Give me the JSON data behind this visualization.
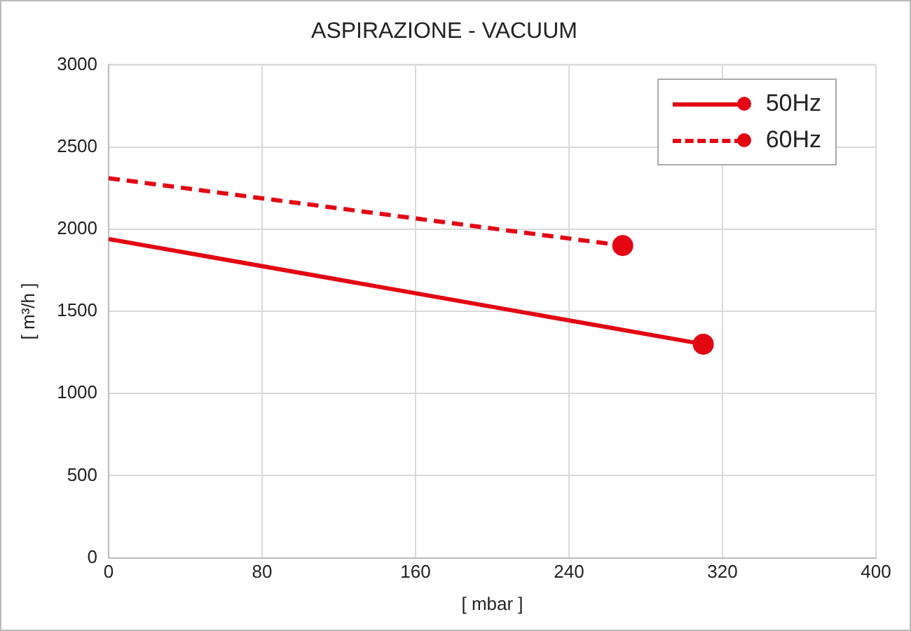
{
  "chart_data": {
    "type": "line",
    "title": "ASPIRAZIONE - VACUUM",
    "xlabel": "[ mbar ]",
    "ylabel": "[ m³/h ]",
    "xlim": [
      0,
      400
    ],
    "xticks": [
      0,
      80,
      160,
      240,
      320,
      400
    ],
    "ylim": [
      0,
      3000
    ],
    "yticks": [
      0,
      500,
      1000,
      1500,
      2000,
      2500,
      3000
    ],
    "grid": true,
    "legend": "top right",
    "marker": "circle",
    "series": [
      {
        "name": "50Hz",
        "color": "#e30613",
        "x": [
          0,
          310
        ],
        "values": [
          1940,
          1300
        ],
        "line_style": "solid"
      },
      {
        "name": "60Hz",
        "color": "#e30613",
        "x": [
          0,
          268
        ],
        "values": [
          2310,
          1900
        ],
        "line_style": "dashed"
      }
    ]
  }
}
